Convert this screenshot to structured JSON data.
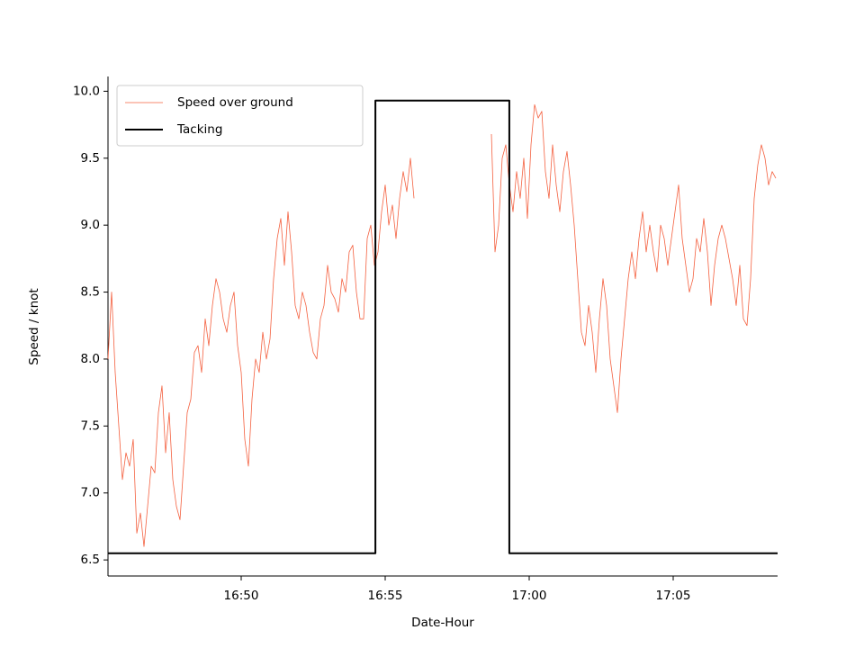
{
  "chart_data": {
    "type": "line",
    "x_label": "Date-Hour",
    "y_label": "Speed / knot",
    "xlim": [
      45.375,
      68.625
    ],
    "xticks": [
      {
        "value": 50,
        "label": "16:50"
      },
      {
        "value": 55,
        "label": "16:55"
      },
      {
        "value": 60,
        "label": "17:00"
      },
      {
        "value": 65,
        "label": "17:05"
      }
    ],
    "ylim": [
      6.38,
      10.11
    ],
    "yticks": [
      6.5,
      {
        "value": 7,
        "label": "7.0"
      },
      7.5,
      {
        "value": 8,
        "label": "8.0"
      },
      8.5,
      {
        "value": 9,
        "label": "9.0"
      },
      9.5,
      {
        "value": 10,
        "label": "10.0"
      }
    ],
    "legend": "upper left",
    "series": [
      {
        "name": "Speed over ground",
        "color": "#f4603f",
        "width": 0.8,
        "x": [
          45.375,
          45.5,
          45.625,
          45.75,
          45.875,
          46,
          46.125,
          46.25,
          46.375,
          46.5,
          46.625,
          46.75,
          46.875,
          47,
          47.125,
          47.25,
          47.375,
          47.5,
          47.625,
          47.75,
          47.875,
          48,
          48.125,
          48.25,
          48.375,
          48.5,
          48.625,
          48.75,
          48.875,
          49,
          49.125,
          49.25,
          49.375,
          49.5,
          49.625,
          49.75,
          49.875,
          50,
          50.125,
          50.25,
          50.375,
          50.5,
          50.625,
          50.75,
          50.875,
          51,
          51.125,
          51.25,
          51.375,
          51.5,
          51.625,
          51.75,
          51.875,
          52,
          52.125,
          52.25,
          52.375,
          52.5,
          52.625,
          52.75,
          52.875,
          53,
          53.125,
          53.25,
          53.375,
          53.5,
          53.625,
          53.75,
          53.875,
          54,
          54.125,
          54.25,
          54.375,
          54.5,
          54.625,
          54.75,
          54.875,
          55,
          55.125,
          55.25,
          55.375,
          55.5,
          55.625,
          55.75,
          55.875,
          56,
          57,
          58.6875,
          58.8125,
          58.9375,
          59.0625,
          59.1875,
          59.3125,
          59.4375,
          59.5625,
          59.6875,
          59.8125,
          59.9375,
          60.0625,
          60.1875,
          60.3125,
          60.4375,
          60.5625,
          60.6875,
          60.8125,
          60.9375,
          61.0625,
          61.1875,
          61.3125,
          61.4375,
          61.5625,
          61.6875,
          61.8125,
          61.9375,
          62.0625,
          62.1875,
          62.3125,
          62.4375,
          62.5625,
          62.6875,
          62.8125,
          62.9375,
          63.0625,
          63.1875,
          63.3125,
          63.4375,
          63.5625,
          63.6875,
          63.8125,
          63.9375,
          64.0625,
          64.1875,
          64.3125,
          64.4375,
          64.5625,
          64.6875,
          64.8125,
          64.9375,
          65.0625,
          65.1875,
          65.3125,
          65.4375,
          65.5625,
          65.6875,
          65.8125,
          65.9375,
          66.0625,
          66.1875,
          66.3125,
          66.4375,
          66.5625,
          66.6875,
          66.8125,
          66.9375,
          67.0625,
          67.1875,
          67.3125,
          67.4375,
          67.5625,
          67.6875,
          67.8125,
          67.9375,
          68.0625,
          68.1875,
          68.3125,
          68.4375,
          68.5625
        ],
        "values": [
          8.0,
          8.5,
          7.9,
          7.5,
          7.1,
          7.3,
          7.2,
          7.4,
          6.7,
          6.85,
          6.6,
          6.9,
          7.2,
          7.15,
          7.6,
          7.8,
          7.3,
          7.6,
          7.1,
          6.9,
          6.8,
          7.2,
          7.6,
          7.7,
          8.05,
          8.1,
          7.9,
          8.3,
          8.1,
          8.4,
          8.6,
          8.5,
          8.3,
          8.2,
          8.4,
          8.5,
          8.1,
          7.9,
          7.4,
          7.2,
          7.7,
          8.0,
          7.9,
          8.2,
          8.0,
          8.15,
          8.6,
          8.9,
          9.05,
          8.7,
          9.1,
          8.8,
          8.4,
          8.3,
          8.5,
          8.4,
          8.2,
          8.05,
          8.0,
          8.3,
          8.4,
          8.7,
          8.5,
          8.45,
          8.35,
          8.6,
          8.5,
          8.8,
          8.85,
          8.5,
          8.3,
          8.3,
          8.9,
          9.0,
          8.7,
          8.8,
          9.1,
          9.3,
          9.0,
          9.15,
          8.9,
          9.2,
          9.4,
          9.25,
          9.5,
          9.2,
          null,
          9.68,
          8.8,
          9.0,
          9.5,
          9.6,
          9.3,
          9.1,
          9.4,
          9.2,
          9.5,
          9.05,
          9.6,
          9.9,
          9.8,
          9.85,
          9.4,
          9.2,
          9.6,
          9.3,
          9.1,
          9.4,
          9.55,
          9.3,
          9.0,
          8.6,
          8.2,
          8.1,
          8.4,
          8.2,
          7.9,
          8.3,
          8.6,
          8.4,
          8.0,
          7.8,
          7.6,
          8.0,
          8.3,
          8.6,
          8.8,
          8.6,
          8.9,
          9.1,
          8.8,
          9.0,
          8.8,
          8.65,
          9.0,
          8.9,
          8.7,
          8.9,
          9.1,
          9.3,
          8.9,
          8.7,
          8.5,
          8.6,
          8.9,
          8.8,
          9.05,
          8.8,
          8.4,
          8.7,
          8.9,
          9.0,
          8.9,
          8.75,
          8.6,
          8.4,
          8.7,
          8.3,
          8.25,
          8.6,
          9.2,
          9.45,
          9.6,
          9.5,
          9.3,
          9.4,
          9.35
        ]
      },
      {
        "name": "Tacking",
        "color": "#000000",
        "width": 2,
        "x": [
          45.375,
          54.66,
          54.66,
          59.31,
          59.31,
          68.625
        ],
        "values": [
          6.55,
          6.55,
          9.93,
          9.93,
          6.55,
          6.55
        ]
      }
    ]
  }
}
